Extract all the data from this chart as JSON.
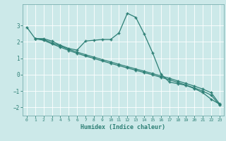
{
  "xlabel": "Humidex (Indice chaleur)",
  "ylabel": "",
  "bg_color": "#cce9e9",
  "grid_color": "#ffffff",
  "line_color": "#2d7f75",
  "xlim": [
    -0.5,
    23.5
  ],
  "ylim": [
    -2.5,
    4.3
  ],
  "xticks": [
    0,
    1,
    2,
    3,
    4,
    5,
    6,
    7,
    8,
    9,
    10,
    11,
    12,
    13,
    14,
    15,
    16,
    17,
    18,
    19,
    20,
    21,
    22,
    23
  ],
  "yticks": [
    -2,
    -1,
    0,
    1,
    2,
    3
  ],
  "line1_x": [
    0,
    1,
    2,
    3,
    4,
    5,
    6,
    7,
    8,
    9,
    10,
    11,
    12,
    13,
    14,
    15,
    16,
    17,
    18,
    19,
    20,
    21,
    22,
    23
  ],
  "line1_y": [
    2.9,
    2.2,
    2.2,
    2.05,
    1.8,
    1.6,
    1.5,
    2.05,
    2.1,
    2.15,
    2.15,
    2.55,
    3.75,
    3.5,
    2.5,
    1.35,
    0.05,
    -0.45,
    -0.55,
    -0.65,
    -0.85,
    -1.1,
    -1.5,
    -1.8
  ],
  "line2_x": [
    1,
    2,
    3,
    4,
    5,
    6,
    7,
    8,
    9,
    10,
    11,
    12,
    13,
    14,
    15,
    16,
    17,
    18,
    19,
    20,
    21,
    22,
    23
  ],
  "line2_y": [
    2.2,
    2.15,
    1.95,
    1.75,
    1.55,
    1.38,
    1.22,
    1.07,
    0.92,
    0.78,
    0.63,
    0.49,
    0.35,
    0.21,
    0.07,
    -0.08,
    -0.22,
    -0.38,
    -0.54,
    -0.7,
    -0.88,
    -1.1,
    -1.78
  ],
  "line3_x": [
    1,
    2,
    3,
    4,
    5,
    6,
    7,
    8,
    9,
    10,
    11,
    12,
    13,
    14,
    15,
    16,
    17,
    18,
    19,
    20,
    21,
    22,
    23
  ],
  "line3_y": [
    2.2,
    2.1,
    1.88,
    1.68,
    1.48,
    1.3,
    1.14,
    0.99,
    0.84,
    0.69,
    0.55,
    0.41,
    0.27,
    0.13,
    -0.01,
    -0.16,
    -0.31,
    -0.47,
    -0.64,
    -0.81,
    -1.0,
    -1.25,
    -1.85
  ]
}
